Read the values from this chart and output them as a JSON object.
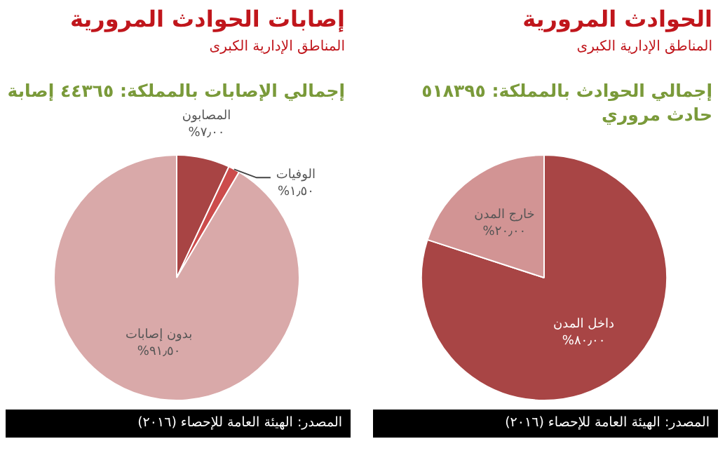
{
  "chart_data": [
    {
      "type": "pie",
      "title": "الحوادث المرورية",
      "subtitle": "المناطق الإدارية الكبرى",
      "categories": [
        "داخل المدن",
        "خارج المدن"
      ],
      "values": [
        80,
        20
      ],
      "colors": [
        "#a84545",
        "#d29494"
      ],
      "value_labels": [
        "٨٠٫٠٠%",
        "٢٠٫٠٠%"
      ],
      "annotations": [
        "إجمالي الحوادث بالمملكة: ٥١٨٣٩٥ حادث مروري",
        "المصدر: الهيئة العامة للإحصاء (٢٠١٦)"
      ]
    },
    {
      "type": "pie",
      "title": "إصابات الحوادث المرورية",
      "subtitle": "المناطق الإدارية الكبرى",
      "categories": [
        "المصابون",
        "الوفيات",
        "بدون إصابات"
      ],
      "values": [
        7,
        1.5,
        91.5
      ],
      "colors": [
        "#a84444",
        "#cc4c4c",
        "#d9a9a9"
      ],
      "value_labels": [
        "٧٫٠٠%",
        "١٫٥٠%",
        "٩١٫٥٠%"
      ],
      "annotations": [
        "إجمالي الإصابات بالمملكة: ٤٤٣٦٥ إصابة",
        "المصدر: الهيئة العامة للإحصاء (٢٠١٦)"
      ]
    }
  ]
}
